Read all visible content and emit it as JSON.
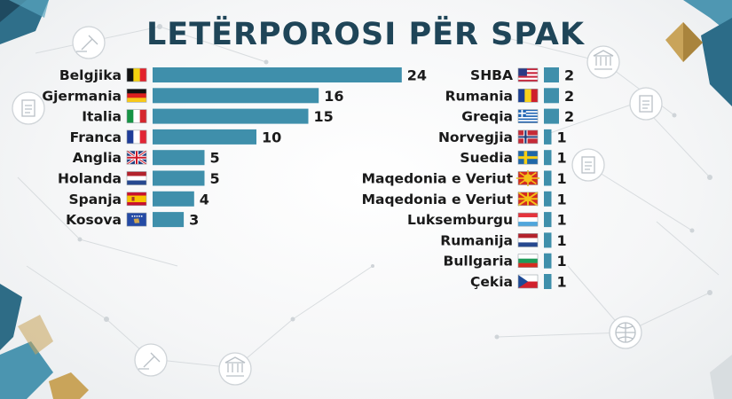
{
  "chart_data": {
    "type": "bar",
    "orientation": "horizontal",
    "title": "LETËRPOROSI PËR SPAK",
    "color": "#3f8fab",
    "xlim": [
      0,
      24
    ],
    "groups": [
      {
        "categories": [
          "Belgjika",
          "Gjermania",
          "Italia",
          "Franca",
          "Anglia",
          "Holanda",
          "Spanja",
          "Kosova"
        ],
        "values": [
          24,
          16,
          15,
          10,
          5,
          5,
          4,
          3
        ],
        "flags": [
          "belgium",
          "germany",
          "italy",
          "france",
          "uk",
          "netherlands",
          "spain",
          "kosovo"
        ]
      },
      {
        "categories": [
          "SHBA",
          "Rumania",
          "Greqia",
          "Norvegjia",
          "Suedia",
          "Maqedonia e Veriut",
          "Maqedonia e Veriut",
          "Luksemburgu",
          "Rumanija",
          "Bullgaria",
          "Çekia"
        ],
        "values": [
          2,
          2,
          2,
          1,
          1,
          1,
          1,
          1,
          1,
          1,
          1
        ],
        "flags": [
          "usa",
          "romania",
          "greece",
          "norway",
          "sweden",
          "north-macedonia-old",
          "north-macedonia",
          "luxembourg",
          "netherlands",
          "bulgaria",
          "czechia"
        ]
      }
    ]
  }
}
